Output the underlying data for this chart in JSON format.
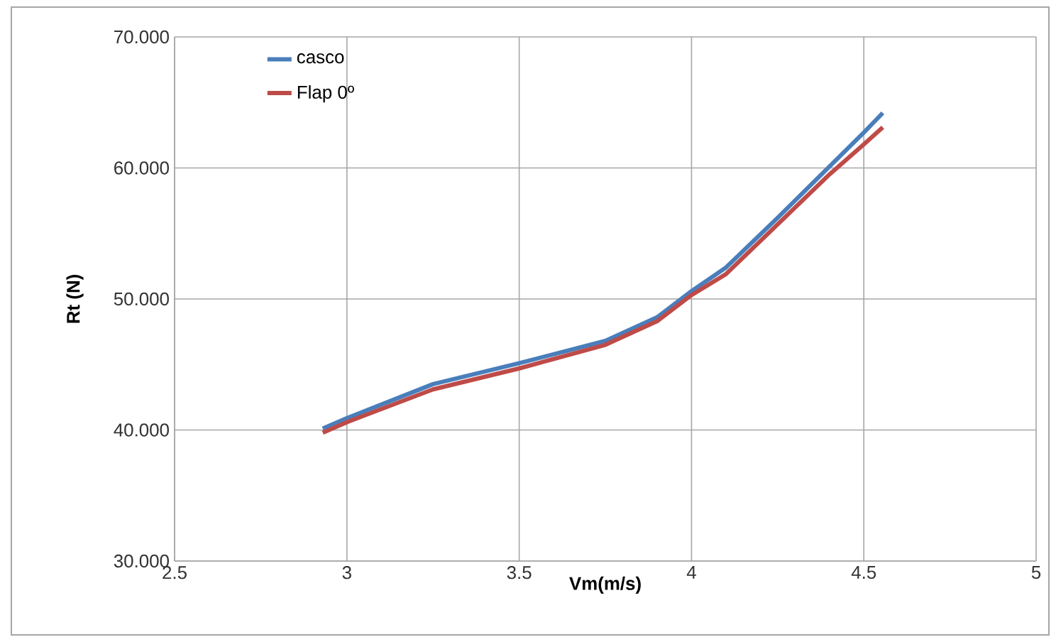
{
  "chart_data": {
    "type": "line",
    "xlabel": "Vm(m/s)",
    "ylabel": "Rt (N)",
    "xlim": [
      2.5,
      5
    ],
    "xticks": [
      2.5,
      3,
      3.5,
      4,
      4.5,
      5
    ],
    "ylim": [
      30,
      70
    ],
    "yticks": [
      {
        "value": 30,
        "label": "30.000"
      },
      {
        "value": 40,
        "label": "40.000"
      },
      {
        "value": 50,
        "label": "50.000"
      },
      {
        "value": 60,
        "label": "60.000"
      },
      {
        "value": 70,
        "label": "70.000"
      }
    ],
    "grid": true,
    "legend": "top left",
    "marker": "none",
    "line_style": "solid",
    "series": [
      {
        "name": "casco",
        "color": "#4a7ebb",
        "x": [
          2.93,
          3.0,
          3.25,
          3.5,
          3.75,
          3.9,
          4.0,
          4.1,
          4.25,
          4.4,
          4.5,
          4.555
        ],
        "values": [
          40.1,
          40.9,
          43.5,
          45.1,
          46.8,
          48.6,
          50.6,
          52.4,
          56.2,
          60.1,
          62.7,
          64.2
        ]
      },
      {
        "name": "Flap 0º",
        "color": "#be4b48",
        "x": [
          2.93,
          3.0,
          3.25,
          3.5,
          3.75,
          3.9,
          4.0,
          4.1,
          4.25,
          4.4,
          4.5,
          4.555
        ],
        "values": [
          39.8,
          40.6,
          43.1,
          44.7,
          46.5,
          48.3,
          50.3,
          51.9,
          55.7,
          59.5,
          61.8,
          63.1
        ]
      }
    ]
  }
}
